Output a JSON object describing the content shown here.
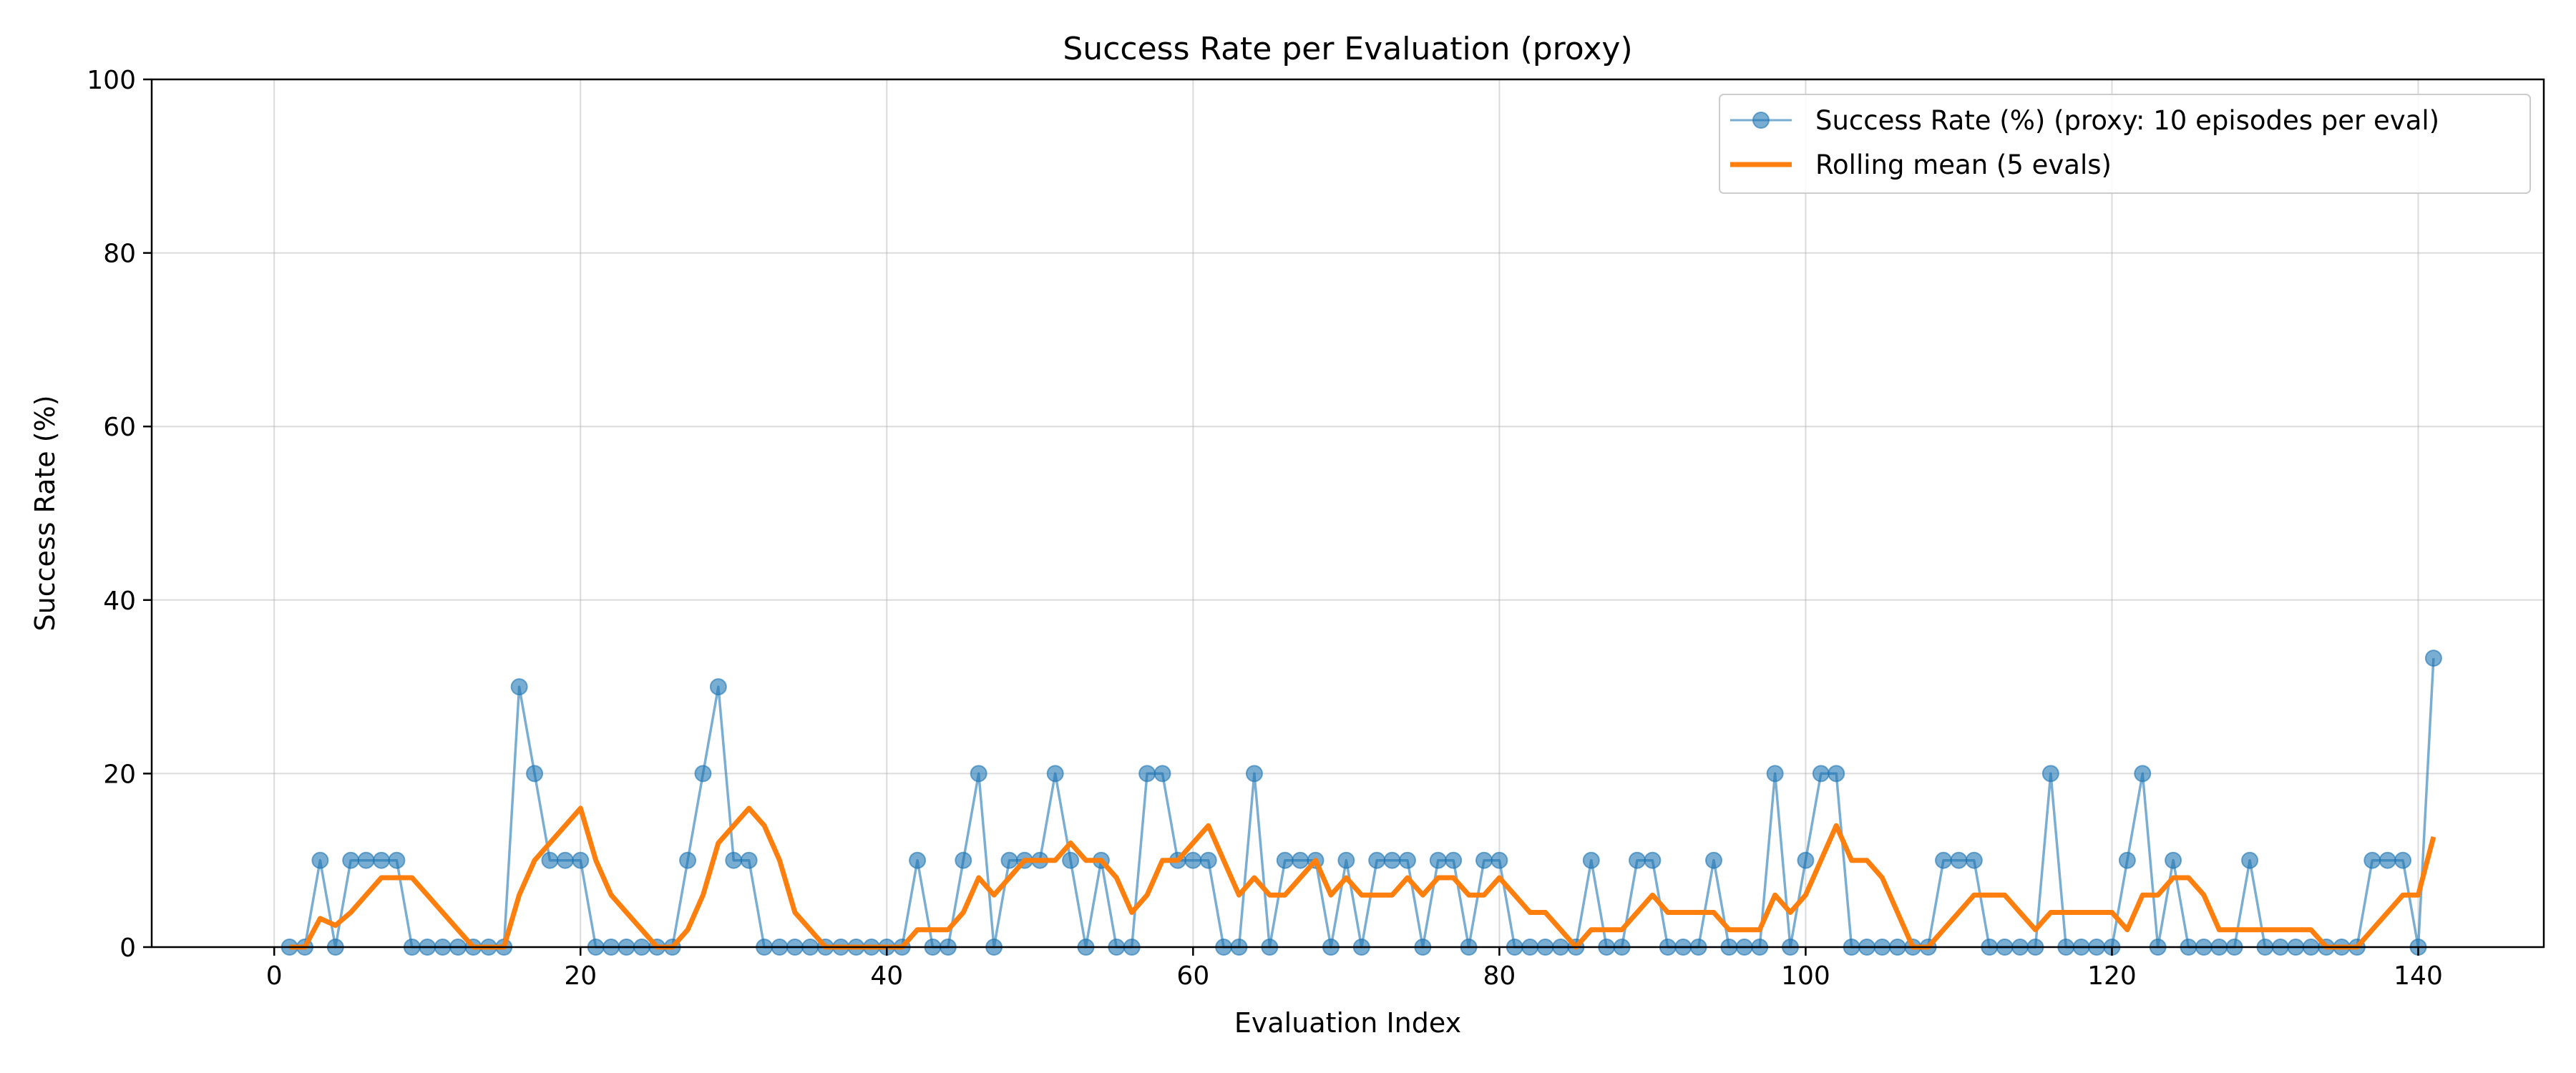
{
  "chart_data": {
    "type": "line",
    "title": "Success Rate per Evaluation (proxy)",
    "xlabel": "Evaluation Index",
    "ylabel": "Success Rate (%)",
    "xlim": [
      -8,
      148.2
    ],
    "ylim": [
      0,
      100
    ],
    "xticks": [
      0,
      20,
      40,
      60,
      80,
      100,
      120,
      140
    ],
    "yticks": [
      0,
      20,
      40,
      60,
      80,
      100
    ],
    "grid": true,
    "legend_position": "top-right",
    "series": [
      {
        "name": "Success Rate (%) (proxy: 10 episodes per eval)",
        "color": "#1f77b4",
        "marker": "circle",
        "x": [
          1,
          2,
          3,
          4,
          5,
          6,
          7,
          8,
          9,
          10,
          11,
          12,
          13,
          14,
          15,
          16,
          17,
          18,
          19,
          20,
          21,
          22,
          23,
          24,
          25,
          26,
          27,
          28,
          29,
          30,
          31,
          32,
          33,
          34,
          35,
          36,
          37,
          38,
          39,
          40,
          41,
          42,
          43,
          44,
          45,
          46,
          47,
          48,
          49,
          50,
          51,
          52,
          53,
          54,
          55,
          56,
          57,
          58,
          59,
          60,
          61,
          62,
          63,
          64,
          65,
          66,
          67,
          68,
          69,
          70,
          71,
          72,
          73,
          74,
          75,
          76,
          77,
          78,
          79,
          80,
          81,
          82,
          83,
          84,
          85,
          86,
          87,
          88,
          89,
          90,
          91,
          92,
          93,
          94,
          95,
          96,
          97,
          98,
          99,
          100,
          101,
          102,
          103,
          104,
          105,
          106,
          107,
          108,
          109,
          110,
          111,
          112,
          113,
          114,
          115,
          116,
          117,
          118,
          119,
          120,
          121,
          122,
          123,
          124,
          125,
          126,
          127,
          128,
          129,
          130,
          131,
          132,
          133,
          134,
          135,
          136,
          137,
          138,
          139,
          140,
          141
        ],
        "values": [
          0,
          0,
          10,
          0,
          10,
          10,
          10,
          10,
          0,
          0,
          0,
          0,
          0,
          0,
          0,
          30,
          20,
          10,
          10,
          10,
          0,
          0,
          0,
          0,
          0,
          0,
          10,
          20,
          30,
          10,
          10,
          0,
          0,
          0,
          0,
          0,
          0,
          0,
          0,
          0,
          0,
          10,
          0,
          0,
          10,
          20,
          0,
          10,
          10,
          10,
          20,
          10,
          0,
          10,
          0,
          0,
          20,
          20,
          10,
          10,
          10,
          0,
          0,
          20,
          0,
          10,
          10,
          10,
          0,
          10,
          0,
          10,
          10,
          10,
          0,
          10,
          10,
          0,
          10,
          10,
          0,
          0,
          0,
          0,
          0,
          10,
          0,
          0,
          10,
          10,
          0,
          0,
          0,
          10,
          0,
          0,
          0,
          20,
          0,
          10,
          20,
          20,
          0,
          0,
          0,
          0,
          0,
          0,
          10,
          10,
          10,
          0,
          0,
          0,
          0,
          20,
          0,
          0,
          0,
          0,
          10,
          20,
          0,
          10,
          0,
          0,
          0,
          0,
          10,
          0,
          0,
          0,
          0,
          0,
          0,
          0,
          10,
          10,
          10,
          0,
          33.3
        ]
      },
      {
        "name": "Rolling mean (5 evals)",
        "color": "#ff7f0e",
        "marker": "none",
        "x": [
          1,
          2,
          3,
          4,
          5,
          6,
          7,
          8,
          9,
          10,
          11,
          12,
          13,
          14,
          15,
          16,
          17,
          18,
          19,
          20,
          21,
          22,
          23,
          24,
          25,
          26,
          27,
          28,
          29,
          30,
          31,
          32,
          33,
          34,
          35,
          36,
          37,
          38,
          39,
          40,
          41,
          42,
          43,
          44,
          45,
          46,
          47,
          48,
          49,
          50,
          51,
          52,
          53,
          54,
          55,
          56,
          57,
          58,
          59,
          60,
          61,
          62,
          63,
          64,
          65,
          66,
          67,
          68,
          69,
          70,
          71,
          72,
          73,
          74,
          75,
          76,
          77,
          78,
          79,
          80,
          81,
          82,
          83,
          84,
          85,
          86,
          87,
          88,
          89,
          90,
          91,
          92,
          93,
          94,
          95,
          96,
          97,
          98,
          99,
          100,
          101,
          102,
          103,
          104,
          105,
          106,
          107,
          108,
          109,
          110,
          111,
          112,
          113,
          114,
          115,
          116,
          117,
          118,
          119,
          120,
          121,
          122,
          123,
          124,
          125,
          126,
          127,
          128,
          129,
          130,
          131,
          132,
          133,
          134,
          135,
          136,
          137,
          138,
          139,
          140,
          141
        ],
        "values": [
          0,
          0,
          3.3,
          2.5,
          4,
          6,
          8,
          8,
          8,
          6,
          4,
          2,
          0,
          0,
          0,
          6,
          10,
          12,
          14,
          16,
          10,
          6,
          4,
          2,
          0,
          0,
          2,
          6,
          12,
          14,
          16,
          14,
          10,
          4,
          2,
          0,
          0,
          0,
          0,
          0,
          0,
          2,
          2,
          2,
          4,
          8,
          6,
          8,
          10,
          10,
          10,
          12,
          10,
          10,
          8,
          4,
          6,
          10,
          10,
          12,
          14,
          10,
          6,
          8,
          6,
          6,
          8,
          10,
          6,
          8,
          6,
          6,
          6,
          8,
          6,
          8,
          8,
          6,
          6,
          8,
          6,
          4,
          4,
          2,
          0,
          2,
          2,
          2,
          4,
          6,
          4,
          4,
          4,
          4,
          2,
          2,
          2,
          6,
          4,
          6,
          10,
          14,
          10,
          10,
          8,
          4,
          0,
          0,
          2,
          4,
          6,
          6,
          6,
          4,
          2,
          4,
          4,
          4,
          4,
          4,
          2,
          6,
          6,
          8,
          8,
          6,
          2,
          2,
          2,
          2,
          2,
          2,
          2,
          0,
          0,
          0,
          2,
          4,
          6,
          6,
          12.7
        ]
      }
    ]
  }
}
